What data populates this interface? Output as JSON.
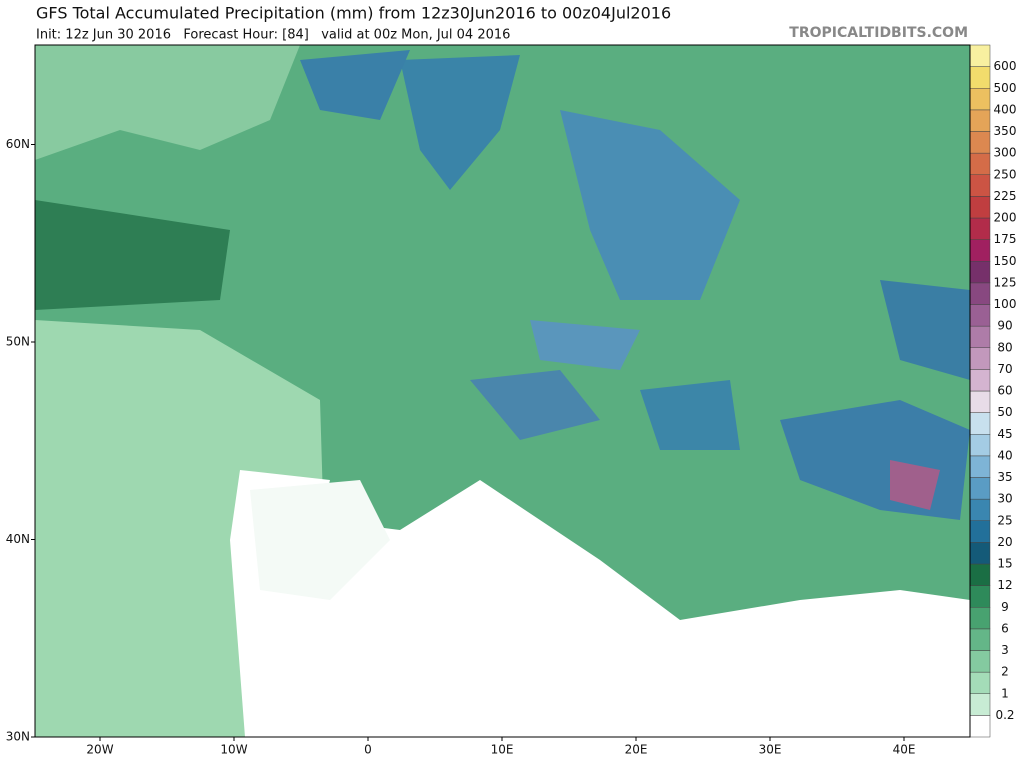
{
  "header": {
    "title": "GFS Total Accumulated Precipitation (mm) from 12z30Jun2016 to 00z04Jul2016",
    "init": "Init: 12z Jun 30 2016   Forecast Hour: [84]   valid at 00z Mon, Jul 04 2016",
    "brand": "TROPICALTIDBITS.COM"
  },
  "map": {
    "lat_labels": [
      "30N",
      "40N",
      "50N",
      "60N"
    ],
    "lon_labels": [
      "20W",
      "10W",
      "0",
      "10E",
      "20E",
      "30E",
      "40E"
    ]
  },
  "colorbar": {
    "labels": [
      "0.2",
      "1",
      "2",
      "3",
      "6",
      "9",
      "12",
      "15",
      "20",
      "25",
      "30",
      "35",
      "40",
      "45",
      "50",
      "60",
      "70",
      "80",
      "90",
      "100",
      "125",
      "150",
      "175",
      "200",
      "225",
      "250",
      "300",
      "350",
      "400",
      "500",
      "600"
    ],
    "colors": [
      "#ffffff",
      "#c8ecd4",
      "#a4dcb8",
      "#84caa0",
      "#64b688",
      "#48a270",
      "#2e8a5a",
      "#1a6e44",
      "#145a78",
      "#22709a",
      "#3a86b0",
      "#5a9cc4",
      "#7eb4d6",
      "#a4cce4",
      "#c8e0ee",
      "#e8dce8",
      "#d4b4d0",
      "#c298bc",
      "#ae7ca8",
      "#9a6094",
      "#884880",
      "#76306a",
      "#a02060",
      "#b22c4a",
      "#c03e40",
      "#cc5444",
      "#d46c48",
      "#dc8850",
      "#e4a458",
      "#ecc060",
      "#f2dc6c",
      "#f8f0a0"
    ]
  }
}
